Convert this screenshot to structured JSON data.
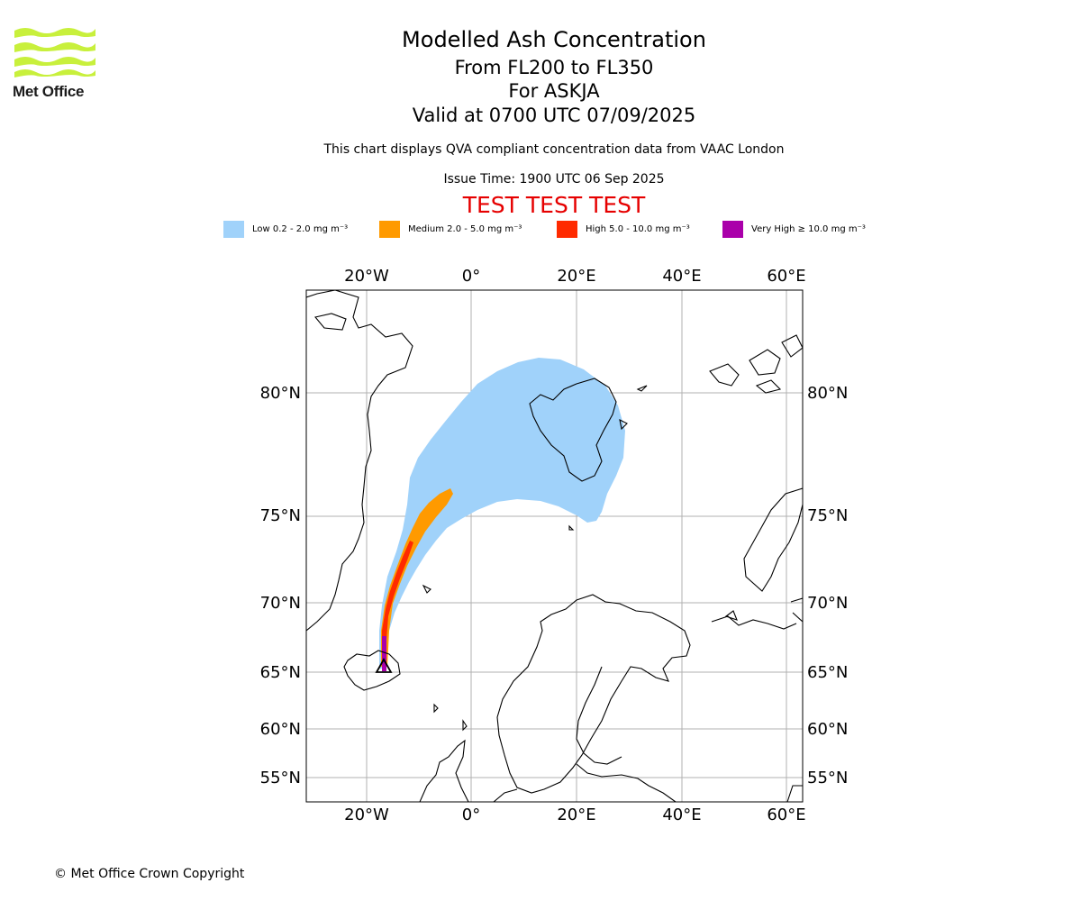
{
  "brand": {
    "name": "Met Office",
    "logo_icon": "met-office-wave-logo-icon",
    "logo_color": "#c8f03c"
  },
  "header": {
    "title": "Modelled Ash Concentration",
    "levels": "From FL200 to FL350",
    "volcano": "For ASKJA",
    "valid": "Valid at 0700 UTC 07/09/2025",
    "note": "This chart displays QVA compliant concentration data from VAAC London",
    "issue_time": "Issue Time: 1900 UTC 06 Sep 2025",
    "test_banner": "TEST TEST TEST",
    "test_color": "#e60000"
  },
  "legend": [
    {
      "label": "Low 0.2 - 2.0 mg m⁻³",
      "color": "#a0d2fa"
    },
    {
      "label": "Medium 2.0 - 5.0 mg m⁻³",
      "color": "#ff9a00"
    },
    {
      "label": "High 5.0 - 10.0 mg m⁻³",
      "color": "#ff2a00"
    },
    {
      "label": "Very High ≥ 10.0 mg m⁻³",
      "color": "#aa00aa"
    }
  ],
  "map": {
    "projection": "north-polar stereographic",
    "longitude_labels": [
      "20°W",
      "0°",
      "20°E",
      "40°E",
      "60°E"
    ],
    "latitude_labels": [
      "80°N",
      "75°N",
      "70°N",
      "65°N",
      "60°N",
      "55°N"
    ],
    "grid_color": "#b0b0b0",
    "coast_color": "#000000",
    "source_marker_icon": "volcano-triangle-icon"
  },
  "footer": {
    "copyright": "© Met Office Crown Copyright"
  }
}
